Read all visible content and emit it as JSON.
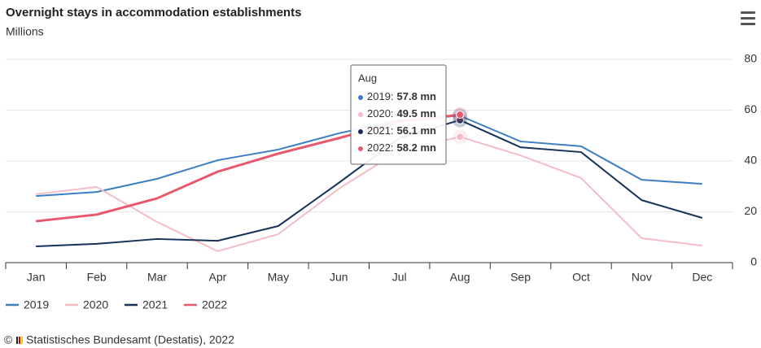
{
  "chart_data": {
    "type": "line",
    "title": "Overnight stays in accommodation establishments",
    "subtitle": "Millions",
    "categories": [
      "Jan",
      "Feb",
      "Mar",
      "Apr",
      "May",
      "Jun",
      "Jul",
      "Aug",
      "Sep",
      "Oct",
      "Nov",
      "Dec"
    ],
    "series": [
      {
        "name": "2019",
        "color": "#3a7fc1",
        "values": [
          26.2,
          27.8,
          33,
          40.3,
          44.5,
          50.9,
          56,
          57.8,
          47.7,
          45.8,
          32.6,
          31
        ]
      },
      {
        "name": "2020",
        "color": "#f5bcc6",
        "values": [
          26.9,
          29.8,
          16,
          4.5,
          11.2,
          29.1,
          44,
          49.5,
          42.2,
          33.3,
          9.6,
          6.7
        ]
      },
      {
        "name": "2021",
        "color": "#17325a",
        "values": [
          6.4,
          7.4,
          9.3,
          8.6,
          14.4,
          31.4,
          49,
          56.1,
          45.4,
          43.5,
          24.6,
          17.6
        ]
      },
      {
        "name": "2022",
        "color": "#e8586d",
        "values": [
          16.3,
          18.9,
          25.3,
          35.8,
          42.9,
          49,
          55.5,
          58.2,
          null,
          null,
          null,
          null
        ]
      }
    ],
    "ylim": [
      0,
      80
    ],
    "yticks": [
      0,
      20,
      40,
      60,
      80
    ],
    "grid": true,
    "tooltip": {
      "title": "Aug",
      "items": [
        {
          "label": "2019:",
          "value": "57.8 mn"
        },
        {
          "label": "2020:",
          "value": "49.5 mn"
        },
        {
          "label": "2021:",
          "value": "56.1 mn"
        },
        {
          "label": "2022:",
          "value": "58.2 mn"
        }
      ]
    },
    "copyright": "©",
    "credit": "Statistisches Bundesamt (Destatis), 2022"
  }
}
